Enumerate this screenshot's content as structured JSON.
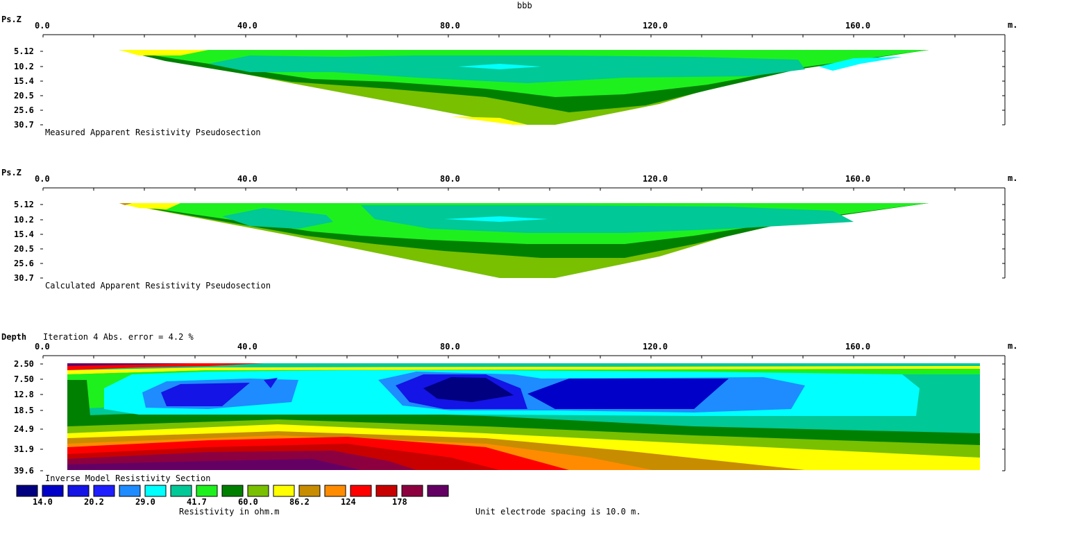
{
  "title": "bbb",
  "colors": [
    "#000080",
    "#0000c8",
    "#0000f0",
    "#1414ff",
    "#1e90ff",
    "#00ffff",
    "#00c896",
    "#28f028",
    "#008000",
    "#78c800",
    "#ffff00",
    "#c88c00",
    "#ff8c00",
    "#ff0000",
    "#c80000",
    "#8c0040",
    "#640064"
  ],
  "legend": {
    "swatches": [
      "#000080",
      "#0000c8",
      "#1414e6",
      "#1e1eff",
      "#1e8cff",
      "#00ffff",
      "#00c896",
      "#1ef01e",
      "#008000",
      "#78c000",
      "#ffff00",
      "#c88c00",
      "#ff8c00",
      "#ff0000",
      "#c80000",
      "#8c0040",
      "#640064"
    ],
    "labels": [
      "14.0",
      "20.2",
      "29.0",
      "41.7",
      "60.0",
      "86.2",
      "124",
      "178"
    ],
    "units_label": "Resistivity in ohm.m",
    "spacing_label": "Unit electrode spacing is 10.0 m."
  },
  "chart_data": [
    {
      "type": "heatmap",
      "name": "measured",
      "y_axis_name": "Ps.Z",
      "x_unit": "m.",
      "x_ticks": [
        "0.0",
        "40.0",
        "80.0",
        "120.0",
        "160.0"
      ],
      "y_ticks": [
        "5.12",
        "10.2",
        "15.4",
        "20.5",
        "25.6",
        "30.7"
      ],
      "caption": "Measured Apparent Resistivity Pseudosection",
      "xlim": [
        0,
        190
      ],
      "ylim": [
        0,
        30.7
      ]
    },
    {
      "type": "heatmap",
      "name": "calculated",
      "y_axis_name": "Ps.Z",
      "x_unit": "m.",
      "x_ticks": [
        "0.0",
        "40.0",
        "80.0",
        "120.0",
        "160.0"
      ],
      "y_ticks": [
        "5.12",
        "10.2",
        "15.4",
        "20.5",
        "25.6",
        "30.7"
      ],
      "caption": "Calculated Apparent Resistivity Pseudosection",
      "xlim": [
        0,
        190
      ],
      "ylim": [
        0,
        30.7
      ]
    },
    {
      "type": "heatmap",
      "name": "inverse",
      "y_axis_name": "Depth",
      "header": "Iteration 4 Abs. error = 4.2 %",
      "x_unit": "m.",
      "x_ticks": [
        "0.0",
        "40.0",
        "80.0",
        "120.0",
        "160.0"
      ],
      "y_ticks": [
        "2.50",
        "7.50",
        "12.8",
        "18.5",
        "24.9",
        "31.9",
        "39.6"
      ],
      "caption": "Inverse Model Resistivity Section",
      "xlim": [
        0,
        190
      ],
      "ylim": [
        0,
        39.6
      ]
    }
  ]
}
